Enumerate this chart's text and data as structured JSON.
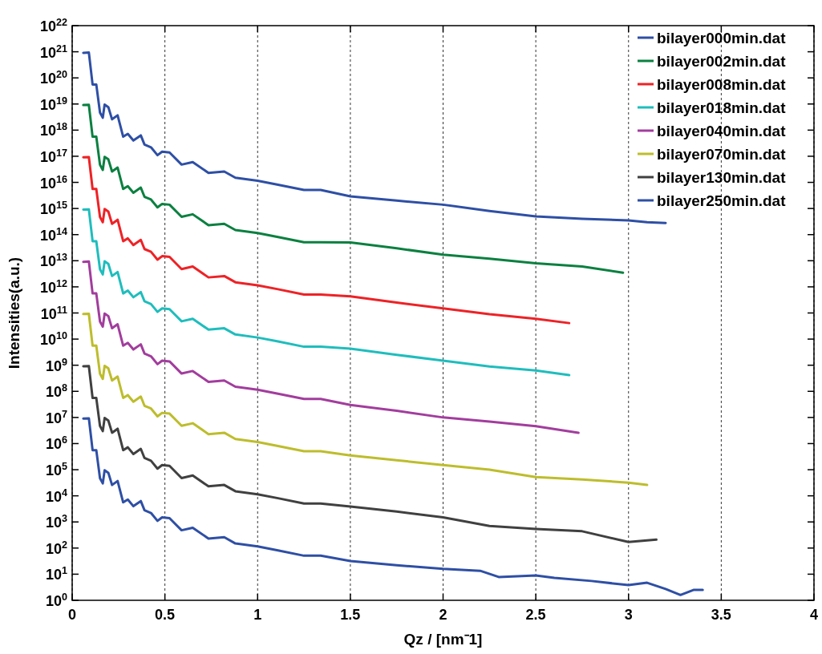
{
  "chart_data": {
    "type": "line",
    "xlabel": "Qz / [nm⁻1]",
    "ylabel": "Intensities(a.u.)",
    "log": "y",
    "grid": "x",
    "legend": "top right",
    "line_style": "solid",
    "marker": "none",
    "xlim": [
      0,
      4
    ],
    "xticks": [
      0,
      0.5,
      1,
      1.5,
      2,
      2.5,
      3,
      3.5,
      4
    ],
    "ylim": [
      1,
      1e+22
    ],
    "yticks": [
      {
        "value": 1,
        "label": "10$^{0}$"
      },
      {
        "value": 10.0,
        "label": "10$^{1}$"
      },
      {
        "value": 100.0,
        "label": "10$^{2}$"
      },
      {
        "value": 1000.0,
        "label": "10$^{3}$"
      },
      {
        "value": 10000.0,
        "label": "10$^{4}$"
      },
      {
        "value": 100000.0,
        "label": "10$^{5}$"
      },
      {
        "value": 1000000.0,
        "label": "10$^{6}$"
      },
      {
        "value": 10000000.0,
        "label": "10$^{7}$"
      },
      {
        "value": 100000000.0,
        "label": "10$^{8}$"
      },
      {
        "value": 1000000000.0,
        "label": "10$^{9}$"
      },
      {
        "value": 10000000000.0,
        "label": "10$^{10}$"
      },
      {
        "value": 100000000000.0,
        "label": "10$^{11}$"
      },
      {
        "value": 1000000000000.0,
        "label": "10$^{12}$"
      },
      {
        "value": 10000000000000.0,
        "label": "10$^{13}$"
      },
      {
        "value": 100000000000000.0,
        "label": "10$^{14}$"
      },
      {
        "value": 1000000000000000.0,
        "label": "10$^{15}$"
      },
      {
        "value": 1e+16,
        "label": "10$^{16}$"
      },
      {
        "value": 1e+17,
        "label": "10$^{17}$"
      },
      {
        "value": 1e+18,
        "label": "10$^{18}$"
      },
      {
        "value": 1e+19,
        "label": "10$^{19}$"
      },
      {
        "value": 1e+20,
        "label": "10$^{20}$"
      },
      {
        "value": 1e+21,
        "label": "10$^{21}$"
      },
      {
        "value": 1e+22,
        "label": "10$^{22}$"
      }
    ],
    "series": [
      {
        "name": "bilayer000min.dat",
        "color": "#2e4fa5",
        "x": [
          0.06,
          0.09,
          0.11,
          0.13,
          0.15,
          0.165,
          0.175,
          0.195,
          0.215,
          0.245,
          0.275,
          0.3,
          0.33,
          0.37,
          0.39,
          0.425,
          0.46,
          0.485,
          0.525,
          0.59,
          0.65,
          0.735,
          0.82,
          0.88,
          1.0,
          1.11,
          1.25,
          1.34,
          1.5,
          1.75,
          2.0,
          2.25,
          2.5,
          2.75,
          3.0,
          3.1,
          3.2
        ],
        "values": [
          9.1e+20,
          9.3e+20,
          5.6e+19,
          5.6e+19,
          4.7e+18,
          3e+18,
          9.5e+18,
          7.6e+18,
          2.6e+18,
          3.7e+18,
          5.6e+17,
          7.2e+17,
          4e+17,
          6.3e+17,
          2.8e+17,
          2.2e+17,
          1.1e+17,
          1.5e+17,
          1.4e+17,
          4.8e+16,
          6e+16,
          2.3e+16,
          2.6e+16,
          1.5e+16,
          1.15e+16,
          8100000000000000.0,
          5100000000000000.0,
          5100000000000000.0,
          2900000000000000.0,
          2000000000000000.0,
          1400000000000000.0,
          800000000000000.0,
          500000000000000.0,
          400000000000000.0,
          350000000000000.0,
          300000000000000.0,
          280000000000000.0
        ]
      },
      {
        "name": "bilayer002min.dat",
        "color": "#0b8040",
        "x": [
          0.06,
          0.09,
          0.11,
          0.13,
          0.15,
          0.165,
          0.175,
          0.195,
          0.215,
          0.245,
          0.275,
          0.3,
          0.33,
          0.37,
          0.39,
          0.425,
          0.46,
          0.485,
          0.525,
          0.59,
          0.65,
          0.735,
          0.82,
          0.88,
          1.0,
          1.11,
          1.25,
          1.34,
          1.5,
          1.75,
          2.0,
          2.25,
          2.5,
          2.75,
          2.97
        ],
        "values": [
          9.1e+18,
          9.3e+18,
          5.6e+17,
          5.6e+17,
          4.7e+16,
          3e+16,
          9.5e+16,
          7.6e+16,
          2.6e+16,
          3.7e+16,
          5600000000000000.0,
          7200000000000000.0,
          4000000000000000.0,
          6300000000000000.0,
          2800000000000000.0,
          2200000000000000.0,
          1100000000000000.0,
          1500000000000000.0,
          1400000000000000.0,
          480000000000000.0,
          600000000000000.0,
          230000000000000.0,
          260000000000000.0,
          150000000000000.0,
          115000000000000.0,
          81000000000000.0,
          51000000000000.0,
          51000000000000.0,
          50000000000000.0,
          30000000000000.0,
          17000000000000.0,
          12000000000000.0,
          8000000000000.0,
          6000000000000.0,
          3500000000000.0
        ]
      },
      {
        "name": "bilayer008min.dat",
        "color": "#ee2226",
        "x": [
          0.06,
          0.09,
          0.11,
          0.13,
          0.15,
          0.165,
          0.175,
          0.195,
          0.215,
          0.245,
          0.275,
          0.3,
          0.33,
          0.37,
          0.39,
          0.425,
          0.46,
          0.485,
          0.525,
          0.59,
          0.65,
          0.735,
          0.82,
          0.88,
          1.0,
          1.11,
          1.25,
          1.34,
          1.5,
          1.75,
          2.0,
          2.25,
          2.5,
          2.68
        ],
        "values": [
          9.1e+16,
          9.3e+16,
          5600000000000000.0,
          5600000000000000.0,
          470000000000000.0,
          300000000000000.0,
          950000000000000.0,
          760000000000000.0,
          260000000000000.0,
          370000000000000.0,
          56000000000000.0,
          72000000000000.0,
          40000000000000.0,
          63000000000000.0,
          28000000000000.0,
          22000000000000.0,
          11000000000000.0,
          15000000000000.0,
          14000000000000.0,
          4800000000000.0,
          6000000000000.0,
          2300000000000.0,
          2600000000000.0,
          1500000000000.0,
          1150000000000.0,
          810000000000.0,
          510000000000.0,
          510000000000.0,
          430000000000.0,
          250000000000.0,
          150000000000.0,
          90000000000.0,
          60000000000.0,
          41000000000.0
        ]
      },
      {
        "name": "bilayer018min.dat",
        "color": "#1fbdbd",
        "x": [
          0.06,
          0.09,
          0.11,
          0.13,
          0.15,
          0.165,
          0.175,
          0.195,
          0.215,
          0.245,
          0.275,
          0.3,
          0.33,
          0.37,
          0.39,
          0.425,
          0.46,
          0.485,
          0.525,
          0.59,
          0.65,
          0.735,
          0.82,
          0.88,
          1.0,
          1.11,
          1.25,
          1.34,
          1.5,
          1.75,
          2.0,
          2.25,
          2.5,
          2.68
        ],
        "values": [
          910000000000000.0,
          930000000000000.0,
          56000000000000.0,
          56000000000000.0,
          4700000000000.0,
          3000000000000.0,
          9500000000000.0,
          7600000000000.0,
          2600000000000.0,
          3700000000000.0,
          560000000000.0,
          720000000000.0,
          400000000000.0,
          630000000000.0,
          280000000000.0,
          220000000000.0,
          110000000000.0,
          150000000000.0,
          140000000000.0,
          48000000000.0,
          60000000000.0,
          23000000000.0,
          26000000000.0,
          15000000000.0,
          11500000000.0,
          8100000000.0,
          5100000000.0,
          5100000000.0,
          4300000000.0,
          2500000000.0,
          1500000000.0,
          900000000.0,
          630000000.0,
          420000000.0
        ]
      },
      {
        "name": "bilayer040min.dat",
        "color": "#a23d9d",
        "x": [
          0.06,
          0.09,
          0.11,
          0.13,
          0.15,
          0.165,
          0.175,
          0.195,
          0.215,
          0.245,
          0.275,
          0.3,
          0.33,
          0.37,
          0.39,
          0.425,
          0.46,
          0.485,
          0.525,
          0.59,
          0.65,
          0.735,
          0.82,
          0.88,
          1.0,
          1.11,
          1.25,
          1.34,
          1.5,
          1.75,
          2.0,
          2.25,
          2.5,
          2.73
        ],
        "values": [
          9100000000000.0,
          9300000000000.0,
          560000000000.0,
          560000000000.0,
          47000000000.0,
          30000000000.0,
          95000000000.0,
          76000000000.0,
          26000000000.0,
          37000000000.0,
          5600000000.0,
          7200000000.0,
          4000000000.0,
          6300000000.0,
          2800000000.0,
          2200000000.0,
          1100000000.0,
          1500000000.0,
          1400000000.0,
          480000000.0,
          600000000.0,
          230000000.0,
          260000000.0,
          150000000.0,
          115000000.0,
          81000000.0,
          51000000.0,
          51000000.0,
          30000000.0,
          18000000.0,
          10000000.0,
          7000000.0,
          4600000.0,
          2600000.0
        ]
      },
      {
        "name": "bilayer070min.dat",
        "color": "#bdbd2c",
        "x": [
          0.06,
          0.09,
          0.11,
          0.13,
          0.15,
          0.165,
          0.175,
          0.195,
          0.215,
          0.245,
          0.275,
          0.3,
          0.33,
          0.37,
          0.39,
          0.425,
          0.46,
          0.485,
          0.525,
          0.59,
          0.65,
          0.735,
          0.82,
          0.88,
          1.0,
          1.11,
          1.25,
          1.34,
          1.5,
          1.75,
          2.0,
          2.25,
          2.5,
          2.75,
          3.0,
          3.1
        ],
        "values": [
          91000000000.0,
          93000000000.0,
          5600000000.0,
          5600000000.0,
          470000000.0,
          300000000.0,
          950000000.0,
          760000000.0,
          260000000.0,
          370000000.0,
          56000000.0,
          72000000.0,
          40000000.0,
          63000000.0,
          28000000.0,
          22000000.0,
          11000000.0,
          15000000.0,
          14000000.0,
          4800000.0,
          6000000.0,
          2300000.0,
          2600000.0,
          1500000.0,
          1150000.0,
          810000.0,
          510000.0,
          510000.0,
          350000.0,
          230000.0,
          150000.0,
          100000.0,
          52000.0,
          42000.0,
          32000.0,
          26000.0
        ]
      },
      {
        "name": "bilayer130min.dat",
        "color": "#404040",
        "x": [
          0.06,
          0.09,
          0.11,
          0.13,
          0.15,
          0.165,
          0.175,
          0.195,
          0.215,
          0.245,
          0.275,
          0.3,
          0.33,
          0.37,
          0.39,
          0.425,
          0.46,
          0.485,
          0.525,
          0.59,
          0.65,
          0.735,
          0.82,
          0.88,
          1.0,
          1.11,
          1.25,
          1.34,
          1.5,
          1.75,
          2.0,
          2.25,
          2.5,
          2.75,
          3.0,
          3.15
        ],
        "values": [
          910000000.0,
          930000000.0,
          56000000.0,
          56000000.0,
          4700000.0,
          3000000.0,
          9500000.0,
          7600000.0,
          2600000.0,
          3700000.0,
          560000.0,
          720000.0,
          400000.0,
          630000.0,
          280000.0,
          220000.0,
          110000.0,
          150000.0,
          140000.0,
          48000.0,
          60000.0,
          23000.0,
          26000.0,
          15000.0,
          11500.0,
          8100.0,
          5100.0,
          5100.0,
          3900.0,
          2500.0,
          1500.0,
          700.0,
          540.0,
          440.0,
          170.0,
          210.0
        ]
      },
      {
        "name": "bilayer250min.dat",
        "color": "#2e4fa5",
        "x": [
          0.06,
          0.09,
          0.11,
          0.13,
          0.15,
          0.165,
          0.175,
          0.195,
          0.215,
          0.245,
          0.275,
          0.3,
          0.33,
          0.37,
          0.39,
          0.425,
          0.46,
          0.485,
          0.525,
          0.59,
          0.65,
          0.735,
          0.82,
          0.88,
          1.0,
          1.11,
          1.25,
          1.34,
          1.5,
          1.75,
          2.0,
          2.2,
          2.3,
          2.5,
          2.6,
          2.8,
          3.0,
          3.1,
          3.2,
          3.28,
          3.35,
          3.4
        ],
        "values": [
          9100000.0,
          9300000.0,
          560000.0,
          560000.0,
          47000.0,
          30000.0,
          95000.0,
          76000.0,
          26000.0,
          37000.0,
          5600.0,
          7200.0,
          4000.0,
          6300.0,
          2800.0,
          2200.0,
          1100.0,
          1500.0,
          1400.0,
          480.0,
          600.0,
          230.0,
          260.0,
          150.0,
          115.0,
          81,
          51,
          51,
          32,
          22,
          16,
          13.5,
          7.8,
          8.9,
          7.2,
          5.5,
          3.8,
          4.7,
          2.7,
          1.6,
          2.5,
          2.5
        ]
      }
    ]
  }
}
